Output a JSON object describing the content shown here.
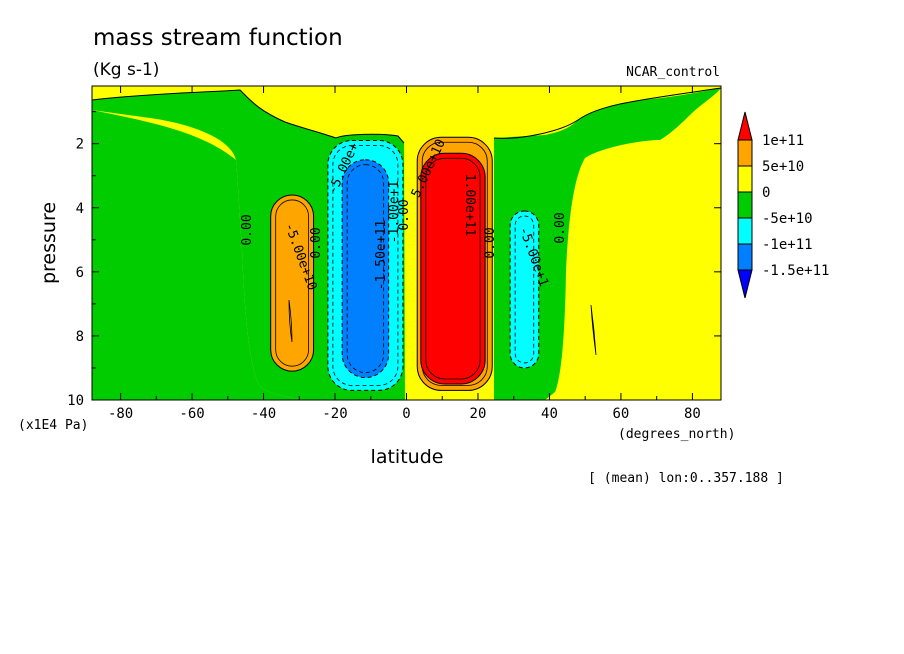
{
  "chart_data": {
    "type": "heatmap",
    "title": "mass stream function",
    "units": "(Kg s-1)",
    "dataset": "NCAR_control",
    "xlabel": "latitude",
    "xunits": "(degrees_north)",
    "ylabel": "pressure",
    "yunits": "(x1E4 Pa)",
    "footer": "[ (mean) lon:0..357.188 ]",
    "xlim": [
      -88,
      88
    ],
    "ylim": [
      10,
      0.2
    ],
    "x_ticks": [
      -80,
      -60,
      -40,
      -20,
      0,
      20,
      40,
      60,
      80
    ],
    "x_tick_labels": [
      "-80",
      "-60",
      "-40",
      "-20",
      "0",
      "20",
      "40",
      "60",
      "80"
    ],
    "y_ticks": [
      2,
      4,
      6,
      8,
      10
    ],
    "y_tick_labels": [
      "2",
      "4",
      "6",
      "8",
      "10"
    ],
    "colorbar": {
      "labels": [
        "1e+11",
        "5e+10",
        "0",
        "-5e+10",
        "-1e+11",
        "-1.5e+11"
      ],
      "bins": [
        {
          "name": "> 1e+11",
          "color": "#ff0000"
        },
        {
          "name": "5e+10 to 1e+11",
          "color": "#ffa500"
        },
        {
          "name": "0 to 5e+10",
          "color": "#ffff00"
        },
        {
          "name": "-5e+10 to 0",
          "color": "#00cc00"
        },
        {
          "name": "-1e+11 to -5e+10",
          "color": "#00ffff"
        },
        {
          "name": "-1.5e+11 to -1e+11",
          "color": "#0080ff"
        },
        {
          "name": "< -1.5e+11",
          "color": "#0000ff"
        }
      ]
    },
    "cells": [
      {
        "lat_min": -22,
        "lat_max": -1,
        "p_top": 1.9,
        "p_bot": 9.7,
        "value": -70000000000.0,
        "color": "#00ffff"
      },
      {
        "lat_min": -18,
        "lat_max": -5,
        "p_top": 2.5,
        "p_bot": 9.3,
        "value": -130000000000.0,
        "color": "#0080ff"
      },
      {
        "lat_min": 3,
        "lat_max": 24,
        "p_top": 1.8,
        "p_bot": 9.7,
        "value": 80000000000.0,
        "color": "#ffa500"
      },
      {
        "lat_min": 4,
        "lat_max": 22,
        "p_top": 2.3,
        "p_bot": 9.5,
        "value": 130000000000.0,
        "color": "#ff0000"
      },
      {
        "lat_min": -38,
        "lat_max": -26,
        "p_top": 3.6,
        "p_bot": 9.1,
        "value": 60000000000.0,
        "color": "#ffa500"
      },
      {
        "lat_min": 29,
        "lat_max": 37,
        "p_top": 4.1,
        "p_bot": 9.0,
        "value": -70000000000.0,
        "color": "#00ffff"
      }
    ],
    "contour_labels": [
      "0.00",
      "-5.00e+10",
      "0.00",
      "-5.00e+",
      "-1.50e+11",
      "-1.00e+1",
      "0.00",
      "5.00e+10",
      "1.00e+11",
      "0.00",
      "-5.00e+1",
      "0.00"
    ]
  }
}
